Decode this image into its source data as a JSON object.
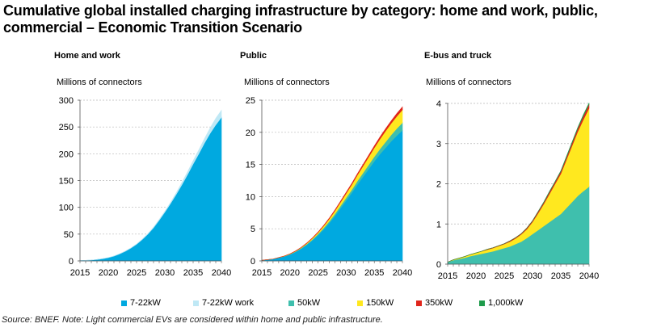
{
  "title": "Cumulative global installed charging infrastructure by category: home and work, public, commercial – Economic Transition Scenario",
  "source": "Source: BNEF. Note: Light commercial EVs are considered within home and public infrastructure.",
  "colors": {
    "7-22kW": "#00a9e0",
    "7-22kW work": "#bfe8f5",
    "50kW": "#3fbfad",
    "150kW": "#ffe81f",
    "350kW": "#e0251b",
    "1,000kW": "#1e9b4b"
  },
  "legend": [
    {
      "key": "7-22kW",
      "label": "7-22kW"
    },
    {
      "key": "7-22kW work",
      "label": "7-22kW work"
    },
    {
      "key": "50kW",
      "label": "50kW"
    },
    {
      "key": "150kW",
      "label": "150kW"
    },
    {
      "key": "350kW",
      "label": "350kW"
    },
    {
      "key": "1,000kW",
      "label": "1,000kW"
    }
  ],
  "chart_data": [
    {
      "type": "area",
      "stacked": true,
      "title": "Home and work",
      "ylabel": "Millions of connectors",
      "x": [
        2015,
        2016,
        2017,
        2018,
        2019,
        2020,
        2021,
        2022,
        2023,
        2024,
        2025,
        2026,
        2027,
        2028,
        2029,
        2030,
        2031,
        2032,
        2033,
        2034,
        2035,
        2036,
        2037,
        2038,
        2039,
        2040
      ],
      "xticks": [
        2015,
        2020,
        2025,
        2030,
        2035,
        2040
      ],
      "ylim": [
        0,
        300
      ],
      "yticks": [
        0,
        50,
        100,
        150,
        200,
        250,
        300
      ],
      "grid": true,
      "series": [
        {
          "name": "7-22kW",
          "values": [
            0.5,
            1,
            1.5,
            2.5,
            4,
            6,
            9,
            13,
            18,
            24,
            31,
            40,
            50,
            62,
            76,
            91,
            107,
            124,
            142,
            161,
            181,
            200,
            220,
            238,
            254,
            268
          ]
        },
        {
          "name": "7-22kW work",
          "values": [
            0,
            0,
            0,
            0,
            0,
            0,
            0.1,
            0.1,
            0.2,
            0.3,
            0.5,
            0.6,
            0.8,
            1,
            1.3,
            1.6,
            2,
            3,
            4,
            5,
            6,
            7,
            8,
            10,
            12,
            13
          ]
        }
      ]
    },
    {
      "type": "area",
      "stacked": true,
      "title": "Public",
      "ylabel": "Millions of connectors",
      "x": [
        2015,
        2016,
        2017,
        2018,
        2019,
        2020,
        2021,
        2022,
        2023,
        2024,
        2025,
        2026,
        2027,
        2028,
        2029,
        2030,
        2031,
        2032,
        2033,
        2034,
        2035,
        2036,
        2037,
        2038,
        2039,
        2040
      ],
      "xticks": [
        2015,
        2020,
        2025,
        2030,
        2035,
        2040
      ],
      "ylim": [
        0,
        25
      ],
      "yticks": [
        0,
        5,
        10,
        15,
        20,
        25
      ],
      "grid": true,
      "series": [
        {
          "name": "7-22kW",
          "values": [
            0.1,
            0.2,
            0.3,
            0.5,
            0.7,
            1.0,
            1.4,
            1.9,
            2.5,
            3.2,
            4.0,
            4.9,
            5.9,
            7.0,
            8.2,
            9.4,
            10.6,
            11.9,
            13.1,
            14.3,
            15.5,
            16.6,
            17.6,
            18.6,
            19.5,
            20.3
          ]
        },
        {
          "name": "50kW",
          "values": [
            0,
            0,
            0,
            0.02,
            0.04,
            0.06,
            0.08,
            0.1,
            0.13,
            0.16,
            0.2,
            0.24,
            0.28,
            0.33,
            0.38,
            0.43,
            0.48,
            0.54,
            0.6,
            0.66,
            0.72,
            0.8,
            0.9,
            1.0,
            1.1,
            1.2
          ]
        },
        {
          "name": "150kW",
          "values": [
            0,
            0,
            0,
            0.01,
            0.02,
            0.03,
            0.05,
            0.08,
            0.12,
            0.17,
            0.23,
            0.3,
            0.38,
            0.47,
            0.57,
            0.68,
            0.8,
            0.93,
            1.07,
            1.22,
            1.38,
            1.55,
            1.7,
            1.8,
            1.9,
            2.0
          ]
        },
        {
          "name": "350kW",
          "values": [
            0,
            0,
            0,
            0,
            0,
            0.01,
            0.02,
            0.03,
            0.04,
            0.05,
            0.06,
            0.08,
            0.1,
            0.12,
            0.14,
            0.16,
            0.18,
            0.2,
            0.23,
            0.26,
            0.29,
            0.32,
            0.35,
            0.38,
            0.42,
            0.45
          ]
        }
      ]
    },
    {
      "type": "area",
      "stacked": true,
      "title": "E-bus and truck",
      "ylabel": "Millions of connectors",
      "x": [
        2015,
        2016,
        2017,
        2018,
        2019,
        2020,
        2021,
        2022,
        2023,
        2024,
        2025,
        2026,
        2027,
        2028,
        2029,
        2030,
        2031,
        2032,
        2033,
        2034,
        2035,
        2036,
        2037,
        2038,
        2039,
        2040
      ],
      "xticks": [
        2015,
        2020,
        2025,
        2030,
        2035,
        2040
      ],
      "ylim": [
        0,
        4
      ],
      "yticks": [
        0,
        1,
        2,
        3,
        4
      ],
      "grid": true,
      "series": [
        {
          "name": "50kW",
          "values": [
            0.05,
            0.1,
            0.13,
            0.16,
            0.2,
            0.23,
            0.26,
            0.29,
            0.32,
            0.36,
            0.4,
            0.44,
            0.5,
            0.56,
            0.65,
            0.75,
            0.85,
            0.95,
            1.05,
            1.15,
            1.25,
            1.4,
            1.55,
            1.7,
            1.82,
            1.93
          ]
        },
        {
          "name": "150kW",
          "values": [
            0,
            0.01,
            0.02,
            0.03,
            0.04,
            0.05,
            0.06,
            0.07,
            0.08,
            0.09,
            0.1,
            0.12,
            0.14,
            0.18,
            0.22,
            0.3,
            0.42,
            0.55,
            0.7,
            0.85,
            1.0,
            1.2,
            1.4,
            1.6,
            1.78,
            1.95
          ]
        },
        {
          "name": "350kW",
          "values": [
            0,
            0,
            0,
            0,
            0,
            0,
            0,
            0.01,
            0.01,
            0.01,
            0.01,
            0.02,
            0.02,
            0.02,
            0.03,
            0.03,
            0.04,
            0.04,
            0.05,
            0.05,
            0.06,
            0.06,
            0.07,
            0.08,
            0.09,
            0.1
          ]
        },
        {
          "name": "1,000kW",
          "values": [
            0,
            0,
            0,
            0,
            0,
            0,
            0,
            0,
            0,
            0,
            0,
            0,
            0,
            0,
            0,
            0,
            0,
            0.01,
            0.01,
            0.01,
            0.01,
            0.02,
            0.02,
            0.02,
            0.03,
            0.03
          ]
        }
      ]
    }
  ]
}
